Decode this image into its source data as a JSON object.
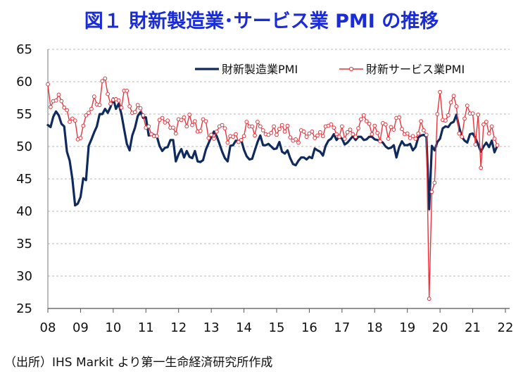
{
  "chart_data": {
    "type": "line",
    "title": "図１ 財新製造業･サービス業 PMI の推移",
    "ylim": [
      25,
      65
    ],
    "y_ticks": [
      25,
      30,
      35,
      40,
      45,
      50,
      55,
      60,
      65
    ],
    "x_start_year": 2008,
    "x_ticks": [
      "08",
      "09",
      "10",
      "11",
      "12",
      "13",
      "14",
      "15",
      "16",
      "17",
      "18",
      "19",
      "20",
      "21",
      "22"
    ],
    "grid": "horizontal-dashed",
    "legend_position": "top-right",
    "series": [
      {
        "name": "財新製造業PMI",
        "color": "#0f2a5c",
        "style": "line",
        "values": [
          53.3,
          53.0,
          54.6,
          55.4,
          54.8,
          53.5,
          53.1,
          49.2,
          47.8,
          45.0,
          40.9,
          41.2,
          42.2,
          45.1,
          44.8,
          50.1,
          51.1,
          52.2,
          53.1,
          55.0,
          55.0,
          55.8,
          55.2,
          56.1,
          57.4,
          55.8,
          56.6,
          55.0,
          52.7,
          50.4,
          49.4,
          51.7,
          52.9,
          54.7,
          55.3,
          54.4,
          54.5,
          51.7,
          51.8,
          51.8,
          51.6,
          50.1,
          49.3,
          49.8,
          49.9,
          51.0,
          51.0,
          47.7,
          48.8,
          49.6,
          48.3,
          49.3,
          48.4,
          48.2,
          49.3,
          47.7,
          47.6,
          47.9,
          49.5,
          50.5,
          51.5,
          52.3,
          51.6,
          50.4,
          49.2,
          48.2,
          47.7,
          50.1,
          50.2,
          50.9,
          50.8,
          51.0,
          49.5,
          48.5,
          48.0,
          48.1,
          49.4,
          50.7,
          51.7,
          50.2,
          50.2,
          50.4,
          50.0,
          49.6,
          49.7,
          50.7,
          49.2,
          48.9,
          49.4,
          48.2,
          47.3,
          47.1,
          47.8,
          48.3,
          48.3,
          48.0,
          48.4,
          48.2,
          49.7,
          49.4,
          49.2,
          48.6,
          50.1,
          50.9,
          51.2,
          51.9,
          51.0,
          51.5,
          51.2,
          50.3,
          50.6,
          51.1,
          51.6,
          51.0,
          51.5,
          51.5,
          51.0,
          51.1,
          51.5,
          51.5,
          51.1,
          51.0,
          50.8,
          50.6,
          50.0,
          49.7,
          49.8,
          50.2,
          48.3,
          49.9,
          50.8,
          50.2,
          50.2,
          50.4,
          49.4,
          49.9,
          51.4,
          51.7,
          51.8,
          51.5,
          40.3,
          50.1,
          49.4,
          50.7,
          51.2,
          52.8,
          53.1,
          53.0,
          53.6,
          53.8,
          54.9,
          53.0,
          51.5,
          50.9,
          50.6,
          51.9,
          52.0,
          51.3,
          50.3,
          49.2,
          50.0,
          50.6,
          49.9,
          50.9,
          49.1,
          50.1
        ]
      },
      {
        "name": "財新サービス業PMI",
        "color": "#e8343d",
        "style": "line-with-markers",
        "values": [
          59.6,
          56.1,
          57.0,
          57.1,
          58.0,
          57.0,
          56.0,
          55.6,
          53.8,
          54.3,
          54.0,
          51.1,
          51.3,
          53.2,
          54.8,
          55.2,
          55.8,
          57.7,
          56.5,
          56.4,
          60.1,
          60.5,
          58.1,
          56.6,
          57.2,
          57.3,
          57.1,
          56.0,
          58.6,
          58.6,
          56.2,
          55.2,
          55.3,
          56.4,
          55.9,
          54.8,
          52.9,
          53.1,
          51.9,
          51.6,
          51.6,
          54.1,
          54.4,
          53.7,
          54.0,
          52.9,
          52.9,
          52.0,
          54.2,
          54.1,
          54.5,
          53.1,
          54.9,
          53.3,
          53.9,
          52.3,
          52.4,
          54.2,
          53.9,
          51.3,
          51.8,
          51.2,
          52.3,
          53.1,
          53.3,
          52.8,
          50.6,
          51.6,
          51.5,
          51.9,
          50.7,
          51.0,
          51.6,
          53.8,
          53.1,
          53.1,
          51.7,
          53.8,
          53.1,
          52.5,
          51.9,
          51.8,
          52.1,
          53.1,
          51.8,
          52.7,
          53.3,
          52.3,
          53.2,
          51.4,
          50.9,
          51.1,
          50.6,
          52.5,
          52.3,
          51.5,
          52.0,
          52.3,
          51.3,
          51.7,
          52.2,
          51.6,
          53.1,
          53.2,
          53.4,
          52.9,
          51.9,
          51.5,
          53.1,
          51.2,
          52.2,
          52.6,
          51.9,
          51.5,
          52.8,
          54.2,
          54.8,
          53.9,
          53.5,
          51.9,
          53.2,
          52.1,
          50.8,
          53.6,
          53.4,
          51.2,
          53.0,
          52.6,
          54.4,
          54.5,
          52.7,
          51.9,
          52.0,
          51.3,
          51.6,
          51.2,
          52.0,
          53.9,
          52.5,
          51.8,
          26.5,
          43.0,
          44.4,
          55.0,
          58.4,
          54.1,
          54.0,
          54.8,
          56.8,
          57.8,
          56.2,
          52.0,
          51.5,
          54.3,
          56.3,
          55.1,
          55.1,
          50.3,
          54.9,
          46.7,
          53.4,
          53.8,
          52.0,
          53.1,
          51.2,
          50.2
        ]
      }
    ]
  },
  "source_note": "（出所）IHS Markit より第一生命経済研究所作成"
}
